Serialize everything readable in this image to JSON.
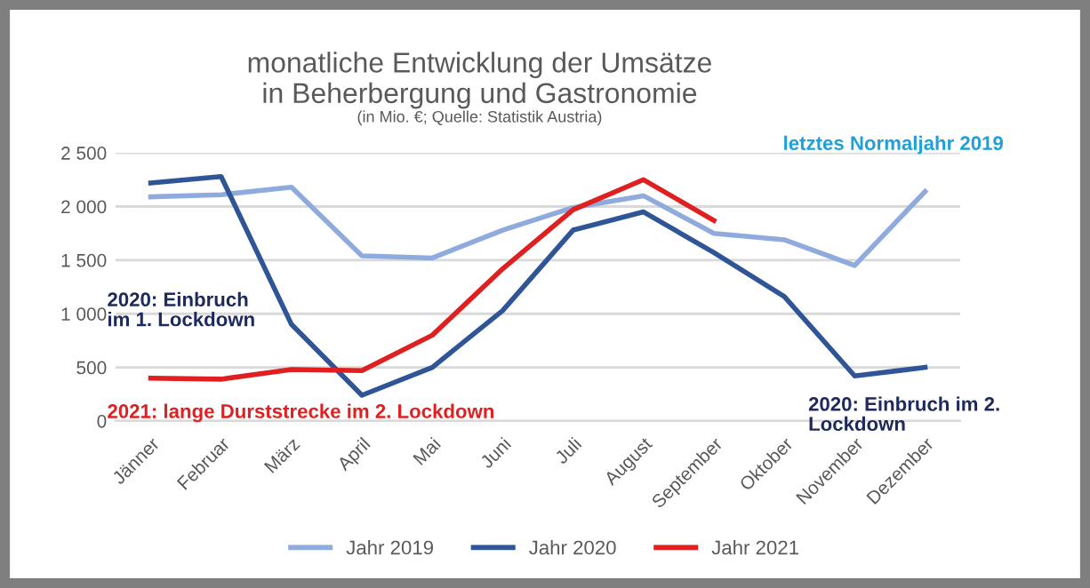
{
  "chart_data": {
    "type": "line",
    "title": "monatliche Entwicklung der Umsätze\nin Beherbergung und Gastronomie",
    "subtitle": "(in Mio. €; Quelle: Statistik Austria)",
    "categories": [
      "Jänner",
      "Februar",
      "März",
      "April",
      "Mai",
      "Juni",
      "Juli",
      "August",
      "September",
      "Oktober",
      "November",
      "Dezember"
    ],
    "series": [
      {
        "name": "Jahr 2019",
        "color": "#8faadc",
        "values": [
          2090,
          2110,
          2180,
          1540,
          1520,
          1780,
          1990,
          2100,
          1750,
          1690,
          1450,
          2140
        ]
      },
      {
        "name": "Jahr 2020",
        "color": "#2f5597",
        "values": [
          2220,
          2280,
          900,
          240,
          500,
          1030,
          1780,
          1950,
          1570,
          1160,
          420,
          500
        ]
      },
      {
        "name": "Jahr 2021",
        "color": "#e02020",
        "values": [
          400,
          390,
          480,
          470,
          800,
          1420,
          1970,
          2250,
          1870,
          null,
          null,
          null
        ]
      }
    ],
    "ylim": [
      0,
      2500
    ],
    "yticks": [
      0,
      {
        "value": 500,
        "label": "500"
      },
      {
        "value": 1000,
        "label": "1 000"
      },
      {
        "value": 1500,
        "label": "1 500"
      },
      {
        "value": 2000,
        "label": "2 000"
      },
      {
        "value": 2500,
        "label": "2 500"
      }
    ],
    "grid": "y",
    "legend": "bottom",
    "marker": "none",
    "line_style": "solid",
    "annotations": [
      "2020: Einbruch\nim 1. Lockdown",
      "2021: lange Durststrecke im 2. Lockdown",
      "letztes Normaljahr 2019",
      "2020: Einbruch im 2.\nLockdown"
    ]
  }
}
